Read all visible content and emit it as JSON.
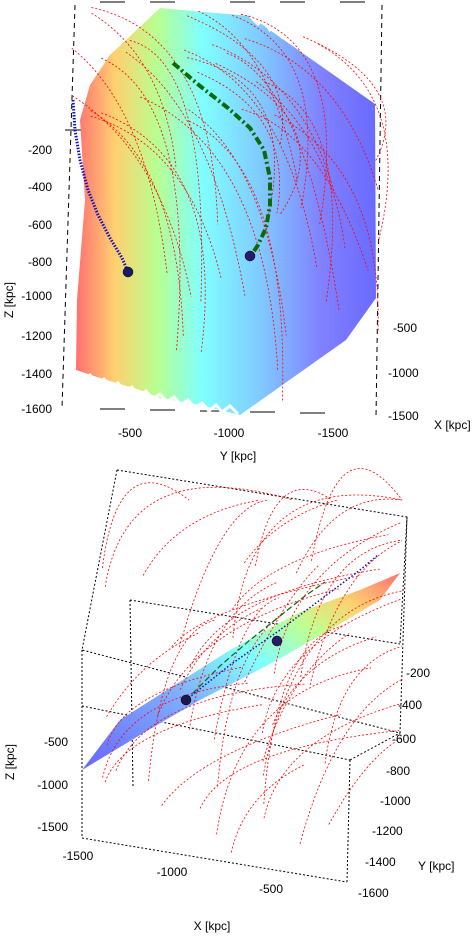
{
  "chart_data": [
    {
      "type": "3d-surface-with-trajectories",
      "view": "top panel",
      "axes": {
        "x": {
          "label": "X [kpc]",
          "ticks": [
            "-500",
            "-1000",
            "-1500"
          ]
        },
        "y": {
          "label": "Y [kpc]",
          "ticks": [
            "-500",
            "-1000",
            "-1500"
          ]
        },
        "z": {
          "label": "Z [kpc]",
          "ticks": [
            "-200",
            "-400",
            "-600",
            "-800",
            "-1000",
            "-1200",
            "-1400",
            "-1600"
          ]
        }
      },
      "surface": {
        "colormap": "jet",
        "color_low": "#5b5bff",
        "color_high": "#ff5b5b"
      },
      "series": [
        {
          "style": "dotted",
          "color": "#ff0000",
          "count_approx": 30
        },
        {
          "style": "dotted",
          "color": "#1010c0",
          "count": 1
        },
        {
          "style": "dash-dot",
          "color": "#006400",
          "count": 1
        }
      ],
      "markers": [
        {
          "color": "#22228a",
          "near": "end of blue trajectory"
        },
        {
          "color": "#22228a",
          "near": "end of green trajectory"
        }
      ],
      "grid": false,
      "box": "dashed"
    },
    {
      "type": "3d-surface-with-trajectories",
      "view": "bottom panel",
      "axes": {
        "x": {
          "label": "X [kpc]",
          "ticks": [
            "-1500",
            "-1000",
            "-500"
          ]
        },
        "y": {
          "label": "Y [kpc]",
          "ticks": [
            "-200",
            "-400",
            "-600",
            "-800",
            "-1000",
            "-1200",
            "-1400",
            "-1600"
          ]
        },
        "z": {
          "label": "Z [kpc]",
          "ticks": [
            "-500",
            "-1000",
            "-1500"
          ]
        }
      },
      "surface": {
        "colormap": "jet",
        "color_low": "#5b5bff",
        "color_high": "#ff5b5b"
      },
      "series": [
        {
          "style": "dotted",
          "color": "#ff0000",
          "count_approx": 40
        },
        {
          "style": "dotted",
          "color": "#1010c0",
          "count": 1
        },
        {
          "style": "dashed",
          "color": "#006400",
          "count": 1
        }
      ],
      "markers": [
        {
          "color": "#22228a",
          "near": "lower"
        },
        {
          "color": "#22228a",
          "near": "upper"
        }
      ],
      "grid": false,
      "box": "dotted"
    }
  ]
}
